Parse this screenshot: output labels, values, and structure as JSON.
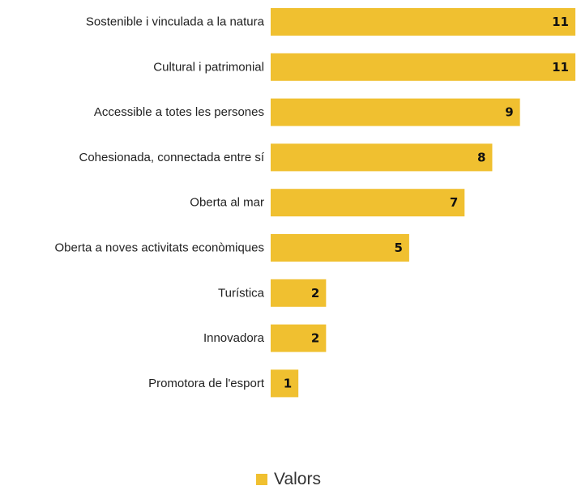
{
  "chart_data": {
    "type": "bar",
    "orientation": "horizontal",
    "categories": [
      "Sostenible i vinculada a la natura",
      "Cultural i patrimonial",
      "Accessible a totes les persones",
      "Cohesionada, connectada entre sí",
      "Oberta al mar",
      "Oberta a noves activitats econòmiques",
      "Turística",
      "Innovadora",
      "Promotora de l'esport"
    ],
    "series": [
      {
        "name": "Valors",
        "values": [
          11,
          11,
          9,
          8,
          7,
          5,
          2,
          2,
          1
        ],
        "color": "#F0C030"
      }
    ],
    "data_labels": true,
    "xlim": [
      0,
      11
    ],
    "grid": false,
    "legend": "bottom-center"
  }
}
